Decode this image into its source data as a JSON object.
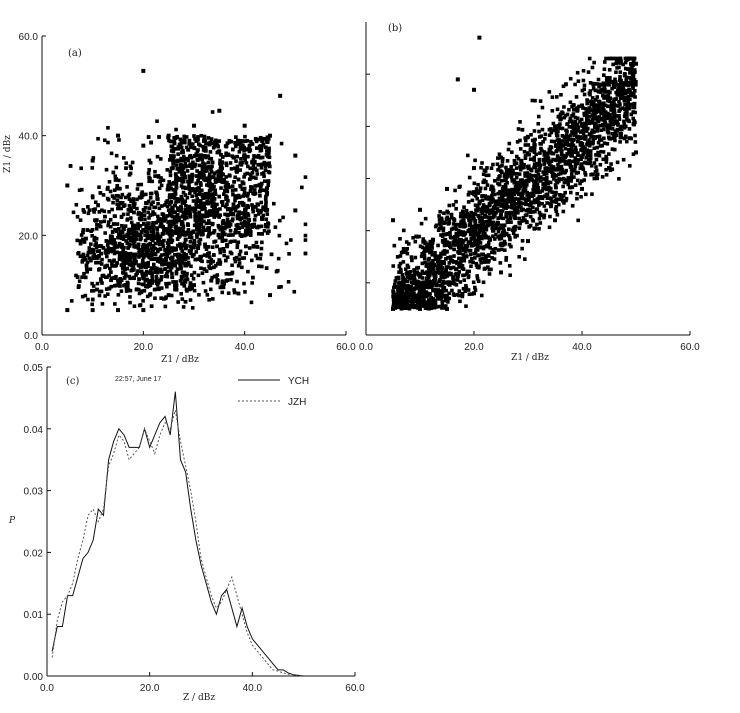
{
  "chart_data": [
    {
      "type": "scatter",
      "panel_label": "(a)",
      "xlabel": "Z1 / dBz",
      "ylabel": "Z1 / dBz",
      "xlim": [
        0,
        60
      ],
      "ylim": [
        0,
        60
      ],
      "xticks": [
        "0.0",
        "20.0",
        "40.0",
        "60.0"
      ],
      "yticks": [
        "0.0",
        "20.0",
        "40.0",
        "60.0"
      ],
      "series": [
        {
          "values": [
            [
              5,
              5
            ],
            [
              5,
              30
            ],
            [
              10,
              5
            ],
            [
              10,
              35
            ],
            [
              15,
              5
            ],
            [
              15,
              40
            ],
            [
              20,
              5
            ],
            [
              20,
              38
            ],
            [
              25,
              8
            ],
            [
              25,
              40
            ],
            [
              30,
              10
            ],
            [
              30,
              42
            ],
            [
              35,
              15
            ],
            [
              35,
              45
            ],
            [
              40,
              20
            ],
            [
              40,
              42
            ],
            [
              45,
              8
            ],
            [
              45,
              40
            ],
            [
              50,
              25
            ],
            [
              50,
              36
            ],
            [
              20,
              53
            ],
            [
              47,
              48
            ]
          ]
        }
      ]
    },
    {
      "type": "scatter",
      "panel_label": "(b)",
      "xlabel": "Z1 / dBz",
      "ylabel": "",
      "xlim": [
        0,
        60
      ],
      "ylim": [
        0,
        60
      ],
      "xticks": [
        "0.0",
        "20.0",
        "40.0",
        "60.0"
      ],
      "yticks": [],
      "series": [
        {
          "values": [
            [
              5,
              5
            ],
            [
              5,
              22
            ],
            [
              10,
              5
            ],
            [
              10,
              24
            ],
            [
              15,
              5
            ],
            [
              15,
              28
            ],
            [
              20,
              8
            ],
            [
              20,
              32
            ],
            [
              25,
              12
            ],
            [
              25,
              34
            ],
            [
              30,
              18
            ],
            [
              30,
              38
            ],
            [
              35,
              22
            ],
            [
              35,
              40
            ],
            [
              40,
              28
            ],
            [
              40,
              44
            ],
            [
              45,
              32
            ],
            [
              45,
              48
            ],
            [
              50,
              35
            ],
            [
              50,
              52
            ],
            [
              21,
              57
            ],
            [
              17,
              49
            ],
            [
              20,
              47
            ]
          ]
        }
      ]
    },
    {
      "type": "line",
      "panel_label": "(c)",
      "annotation": "22:57, June 17",
      "xlabel": "Z / dBz",
      "ylabel": "P",
      "xlim": [
        0,
        60
      ],
      "ylim": [
        0,
        0.05
      ],
      "xticks": [
        "0.0",
        "20.0",
        "40.0",
        "60.0"
      ],
      "yticks": [
        "0.00",
        "0.01",
        "0.02",
        "0.03",
        "0.04",
        "0.05"
      ],
      "series": [
        {
          "name": "YCH",
          "style": "solid",
          "x": [
            1,
            2,
            3,
            4,
            5,
            6,
            7,
            8,
            9,
            10,
            11,
            12,
            13,
            14,
            15,
            16,
            17,
            18,
            19,
            20,
            21,
            22,
            23,
            24,
            25,
            26,
            27,
            28,
            29,
            30,
            31,
            32,
            33,
            34,
            35,
            36,
            37,
            38,
            39,
            40,
            41,
            42,
            43,
            44,
            45,
            46,
            47,
            48,
            49,
            50
          ],
          "y": [
            0.004,
            0.008,
            0.008,
            0.013,
            0.013,
            0.016,
            0.019,
            0.02,
            0.022,
            0.027,
            0.026,
            0.035,
            0.038,
            0.04,
            0.039,
            0.037,
            0.037,
            0.037,
            0.04,
            0.037,
            0.039,
            0.041,
            0.042,
            0.039,
            0.046,
            0.035,
            0.033,
            0.027,
            0.022,
            0.018,
            0.015,
            0.012,
            0.01,
            0.013,
            0.014,
            0.011,
            0.008,
            0.011,
            0.008,
            0.006,
            0.005,
            0.004,
            0.003,
            0.002,
            0.001,
            0.001,
            0.0005,
            0.0002,
            0.0001,
            0.0
          ]
        },
        {
          "name": "JZH",
          "style": "dashed",
          "x": [
            1,
            2,
            3,
            4,
            5,
            6,
            7,
            8,
            9,
            10,
            11,
            12,
            13,
            14,
            15,
            16,
            17,
            18,
            19,
            20,
            21,
            22,
            23,
            24,
            25,
            26,
            27,
            28,
            29,
            30,
            31,
            32,
            33,
            34,
            35,
            36,
            37,
            38,
            39,
            40,
            41,
            42,
            43,
            44,
            45,
            46,
            47,
            48,
            49,
            50
          ],
          "y": [
            0.003,
            0.009,
            0.012,
            0.013,
            0.015,
            0.019,
            0.022,
            0.026,
            0.027,
            0.025,
            0.027,
            0.034,
            0.036,
            0.039,
            0.038,
            0.035,
            0.036,
            0.037,
            0.04,
            0.038,
            0.036,
            0.039,
            0.041,
            0.04,
            0.043,
            0.038,
            0.034,
            0.03,
            0.025,
            0.019,
            0.016,
            0.013,
            0.011,
            0.012,
            0.014,
            0.016,
            0.013,
            0.01,
            0.007,
            0.005,
            0.004,
            0.003,
            0.002,
            0.001,
            0.0008,
            0.0005,
            0.0003,
            0.0002,
            0.0001,
            0.0
          ]
        }
      ]
    }
  ]
}
